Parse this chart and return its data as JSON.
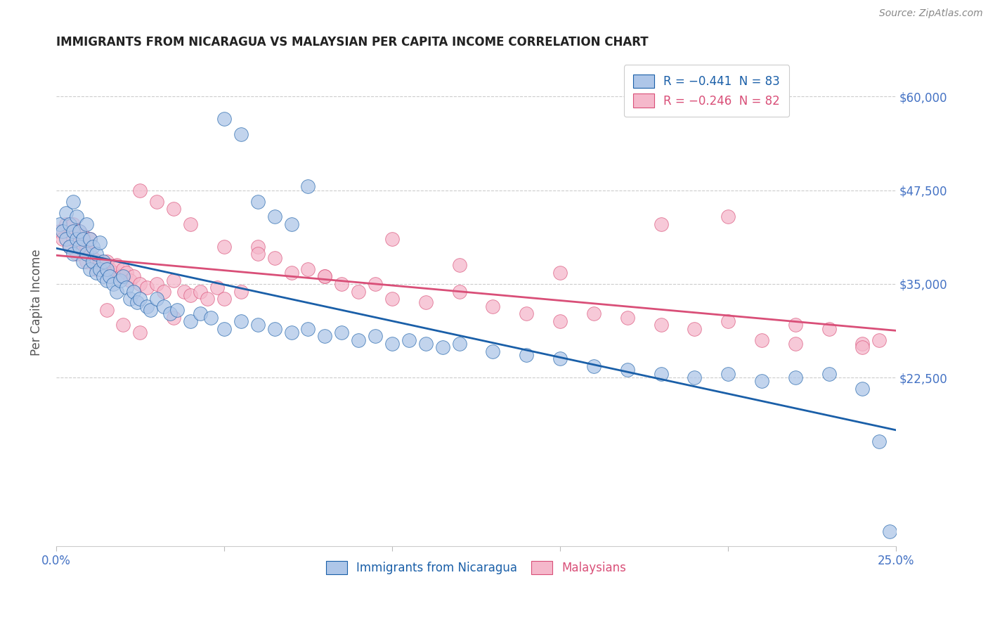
{
  "title": "IMMIGRANTS FROM NICARAGUA VS MALAYSIAN PER CAPITA INCOME CORRELATION CHART",
  "source": "Source: ZipAtlas.com",
  "ylabel": "Per Capita Income",
  "ytick_vals": [
    0,
    22500,
    35000,
    47500,
    60000
  ],
  "ytick_labels": [
    "",
    "$22,500",
    "$35,000",
    "$47,500",
    "$60,000"
  ],
  "xlim": [
    0.0,
    0.25
  ],
  "ylim": [
    0,
    65000
  ],
  "legend_blue_label": "R = −0.441  N = 83",
  "legend_pink_label": "R = −0.246  N = 82",
  "footer_blue": "Immigrants from Nicaragua",
  "footer_pink": "Malaysians",
  "blue_color": "#aec6e8",
  "pink_color": "#f5b8cb",
  "line_blue": "#1a5fa8",
  "line_pink": "#d94f78",
  "blue_scatter_x": [
    0.001,
    0.002,
    0.003,
    0.003,
    0.004,
    0.004,
    0.005,
    0.005,
    0.005,
    0.006,
    0.006,
    0.007,
    0.007,
    0.008,
    0.008,
    0.009,
    0.009,
    0.01,
    0.01,
    0.011,
    0.011,
    0.012,
    0.012,
    0.013,
    0.013,
    0.014,
    0.014,
    0.015,
    0.015,
    0.016,
    0.017,
    0.018,
    0.019,
    0.02,
    0.021,
    0.022,
    0.023,
    0.024,
    0.025,
    0.027,
    0.028,
    0.03,
    0.032,
    0.034,
    0.036,
    0.04,
    0.043,
    0.046,
    0.05,
    0.055,
    0.06,
    0.065,
    0.07,
    0.075,
    0.08,
    0.085,
    0.09,
    0.095,
    0.1,
    0.105,
    0.11,
    0.115,
    0.12,
    0.13,
    0.14,
    0.15,
    0.16,
    0.17,
    0.18,
    0.19,
    0.2,
    0.21,
    0.22,
    0.23,
    0.24,
    0.245,
    0.248,
    0.05,
    0.055,
    0.06,
    0.065,
    0.07,
    0.075
  ],
  "blue_scatter_y": [
    43000,
    42000,
    44500,
    41000,
    40000,
    43000,
    46000,
    42000,
    39000,
    44000,
    41000,
    40000,
    42000,
    38000,
    41000,
    39000,
    43000,
    37000,
    41000,
    38000,
    40000,
    36500,
    39000,
    37000,
    40500,
    36000,
    38000,
    35500,
    37000,
    36000,
    35000,
    34000,
    35500,
    36000,
    34500,
    33000,
    34000,
    32500,
    33000,
    32000,
    31500,
    33000,
    32000,
    31000,
    31500,
    30000,
    31000,
    30500,
    29000,
    30000,
    29500,
    29000,
    28500,
    29000,
    28000,
    28500,
    27500,
    28000,
    27000,
    27500,
    27000,
    26500,
    27000,
    26000,
    25500,
    25000,
    24000,
    23500,
    23000,
    22500,
    23000,
    22000,
    22500,
    23000,
    21000,
    14000,
    2000,
    57000,
    55000,
    46000,
    44000,
    43000,
    48000
  ],
  "pink_scatter_x": [
    0.001,
    0.002,
    0.003,
    0.004,
    0.005,
    0.005,
    0.006,
    0.007,
    0.007,
    0.008,
    0.008,
    0.009,
    0.009,
    0.01,
    0.01,
    0.011,
    0.012,
    0.013,
    0.014,
    0.015,
    0.016,
    0.017,
    0.018,
    0.019,
    0.02,
    0.021,
    0.022,
    0.023,
    0.025,
    0.027,
    0.03,
    0.032,
    0.035,
    0.038,
    0.04,
    0.043,
    0.045,
    0.048,
    0.05,
    0.055,
    0.06,
    0.065,
    0.07,
    0.075,
    0.08,
    0.085,
    0.09,
    0.095,
    0.1,
    0.11,
    0.12,
    0.13,
    0.14,
    0.15,
    0.16,
    0.17,
    0.18,
    0.19,
    0.2,
    0.21,
    0.22,
    0.23,
    0.24,
    0.245,
    0.025,
    0.03,
    0.035,
    0.04,
    0.05,
    0.06,
    0.08,
    0.1,
    0.12,
    0.15,
    0.18,
    0.2,
    0.22,
    0.24,
    0.015,
    0.02,
    0.025,
    0.035
  ],
  "pink_scatter_y": [
    42000,
    41000,
    43000,
    40000,
    43000,
    41000,
    39000,
    42000,
    40500,
    41500,
    39500,
    38000,
    40000,
    39000,
    41000,
    38500,
    37000,
    38000,
    37500,
    38000,
    37000,
    36500,
    37500,
    36000,
    37000,
    36500,
    35500,
    36000,
    35000,
    34500,
    35000,
    34000,
    35500,
    34000,
    33500,
    34000,
    33000,
    34500,
    33000,
    34000,
    40000,
    38500,
    36500,
    37000,
    36000,
    35000,
    34000,
    35000,
    33000,
    32500,
    34000,
    32000,
    31000,
    30000,
    31000,
    30500,
    29500,
    29000,
    30000,
    27500,
    29500,
    29000,
    27000,
    27500,
    47500,
    46000,
    45000,
    43000,
    40000,
    39000,
    36000,
    41000,
    37500,
    36500,
    43000,
    44000,
    27000,
    26500,
    31500,
    29500,
    28500,
    30500
  ]
}
